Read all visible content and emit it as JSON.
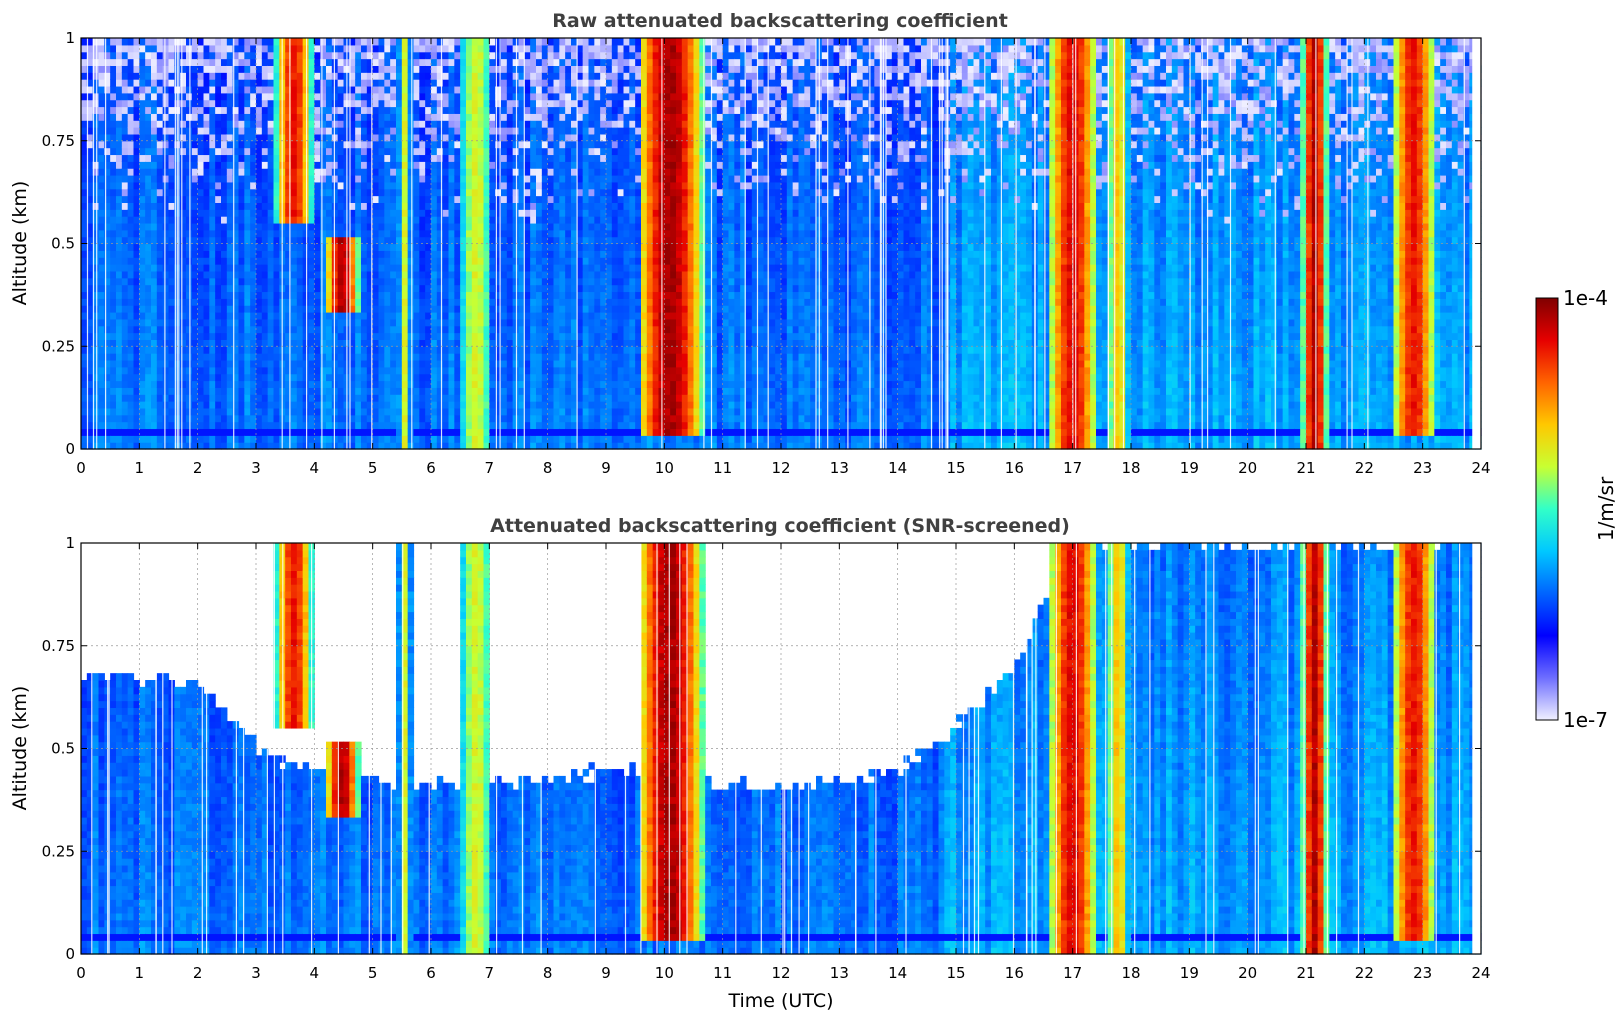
{
  "chart_data": [
    {
      "type": "heatmap",
      "title": "Raw attenuated backscattering coefficient",
      "xlabel": "",
      "ylabel": "Altitude (km)",
      "xlim": [
        0,
        24
      ],
      "ylim": [
        0,
        1
      ],
      "xticks": [
        "0",
        "1",
        "2",
        "3",
        "4",
        "5",
        "6",
        "7",
        "8",
        "9",
        "10",
        "11",
        "12",
        "13",
        "14",
        "15",
        "16",
        "17",
        "18",
        "19",
        "20",
        "21",
        "22",
        "23",
        "24"
      ],
      "yticks": [
        "0",
        "0.25",
        "0.5",
        "0.75",
        "1"
      ],
      "grid": true,
      "screened": false,
      "features": [
        {
          "name": "plume",
          "x_start": 3.35,
          "x_end": 3.95,
          "top_alt": 1.0,
          "base_alt": 0.55,
          "peak_level": 0.88
        },
        {
          "name": "plume",
          "x_start": 5.45,
          "x_end": 5.65,
          "top_alt": 1.0,
          "base_alt": 0.0,
          "peak_level": 0.62
        },
        {
          "name": "plume",
          "x_start": 6.5,
          "x_end": 7.05,
          "top_alt": 1.0,
          "base_alt": 0.0,
          "peak_level": 0.62
        },
        {
          "name": "plume",
          "x_start": 9.55,
          "x_end": 10.65,
          "top_alt": 1.0,
          "base_alt": 0.03,
          "peak_level": 0.96
        },
        {
          "name": "plume",
          "x_start": 16.6,
          "x_end": 17.4,
          "top_alt": 1.0,
          "base_alt": 0.0,
          "peak_level": 0.9
        },
        {
          "name": "plume",
          "x_start": 17.6,
          "x_end": 17.95,
          "top_alt": 1.0,
          "base_alt": 0.0,
          "peak_level": 0.7
        },
        {
          "name": "plume",
          "x_start": 20.95,
          "x_end": 21.35,
          "top_alt": 1.0,
          "base_alt": 0.0,
          "peak_level": 0.95
        },
        {
          "name": "plume",
          "x_start": 22.5,
          "x_end": 23.2,
          "top_alt": 1.0,
          "base_alt": 0.03,
          "peak_level": 0.88
        },
        {
          "name": "patch",
          "x_start": 4.2,
          "x_end": 4.75,
          "top_alt": 0.52,
          "base_alt": 0.33,
          "peak_level": 0.95
        }
      ]
    },
    {
      "type": "heatmap",
      "title": "Attenuated backscattering coefficient (SNR-screened)",
      "xlabel": "Time (UTC)",
      "ylabel": "Altitude (km)",
      "xlim": [
        0,
        24
      ],
      "ylim": [
        0,
        1
      ],
      "xticks": [
        "0",
        "1",
        "2",
        "3",
        "4",
        "5",
        "6",
        "7",
        "8",
        "9",
        "10",
        "11",
        "12",
        "13",
        "14",
        "15",
        "16",
        "17",
        "18",
        "19",
        "20",
        "21",
        "22",
        "23",
        "24"
      ],
      "yticks": [
        "0",
        "0.25",
        "0.5",
        "0.75",
        "1"
      ],
      "grid": true,
      "screened": true,
      "screening_top_alt": [
        [
          0,
          0.68
        ],
        [
          2,
          0.66
        ],
        [
          3,
          0.5
        ],
        [
          4,
          0.45
        ],
        [
          5,
          0.42
        ],
        [
          6,
          0.42
        ],
        [
          8,
          0.42
        ],
        [
          9,
          0.45
        ],
        [
          11,
          0.42
        ],
        [
          12,
          0.4
        ],
        [
          13,
          0.42
        ],
        [
          14,
          0.44
        ],
        [
          15,
          0.55
        ],
        [
          16,
          0.7
        ],
        [
          17,
          1.0
        ],
        [
          24,
          1.0
        ]
      ],
      "features": [
        {
          "name": "plume",
          "x_start": 3.35,
          "x_end": 3.95,
          "top_alt": 1.0,
          "base_alt": 0.55,
          "peak_level": 0.88
        },
        {
          "name": "plume",
          "x_start": 5.45,
          "x_end": 5.65,
          "top_alt": 1.0,
          "base_alt": 0.0,
          "peak_level": 0.62
        },
        {
          "name": "plume",
          "x_start": 6.5,
          "x_end": 7.05,
          "top_alt": 1.0,
          "base_alt": 0.0,
          "peak_level": 0.62
        },
        {
          "name": "plume",
          "x_start": 9.55,
          "x_end": 10.65,
          "top_alt": 1.0,
          "base_alt": 0.03,
          "peak_level": 0.96
        },
        {
          "name": "plume",
          "x_start": 16.6,
          "x_end": 17.4,
          "top_alt": 1.0,
          "base_alt": 0.0,
          "peak_level": 0.9
        },
        {
          "name": "plume",
          "x_start": 17.6,
          "x_end": 17.95,
          "top_alt": 1.0,
          "base_alt": 0.0,
          "peak_level": 0.7
        },
        {
          "name": "plume",
          "x_start": 20.95,
          "x_end": 21.35,
          "top_alt": 1.0,
          "base_alt": 0.0,
          "peak_level": 0.95
        },
        {
          "name": "plume",
          "x_start": 22.5,
          "x_end": 23.2,
          "top_alt": 1.0,
          "base_alt": 0.03,
          "peak_level": 0.88
        },
        {
          "name": "patch",
          "x_start": 4.2,
          "x_end": 4.75,
          "top_alt": 0.52,
          "base_alt": 0.33,
          "peak_level": 0.95
        }
      ]
    }
  ],
  "colorbar": {
    "label": "1/m/sr",
    "max_label": "1e-4",
    "min_label": "1e-7",
    "scale": "log",
    "range": [
      1e-07,
      0.0001
    ],
    "colors": [
      "#f0f0ff",
      "#6e6eff",
      "#0000ff",
      "#0064ff",
      "#00c8ff",
      "#32ffc8",
      "#c8ff32",
      "#ffc800",
      "#ff6400",
      "#e60000",
      "#800000"
    ]
  }
}
